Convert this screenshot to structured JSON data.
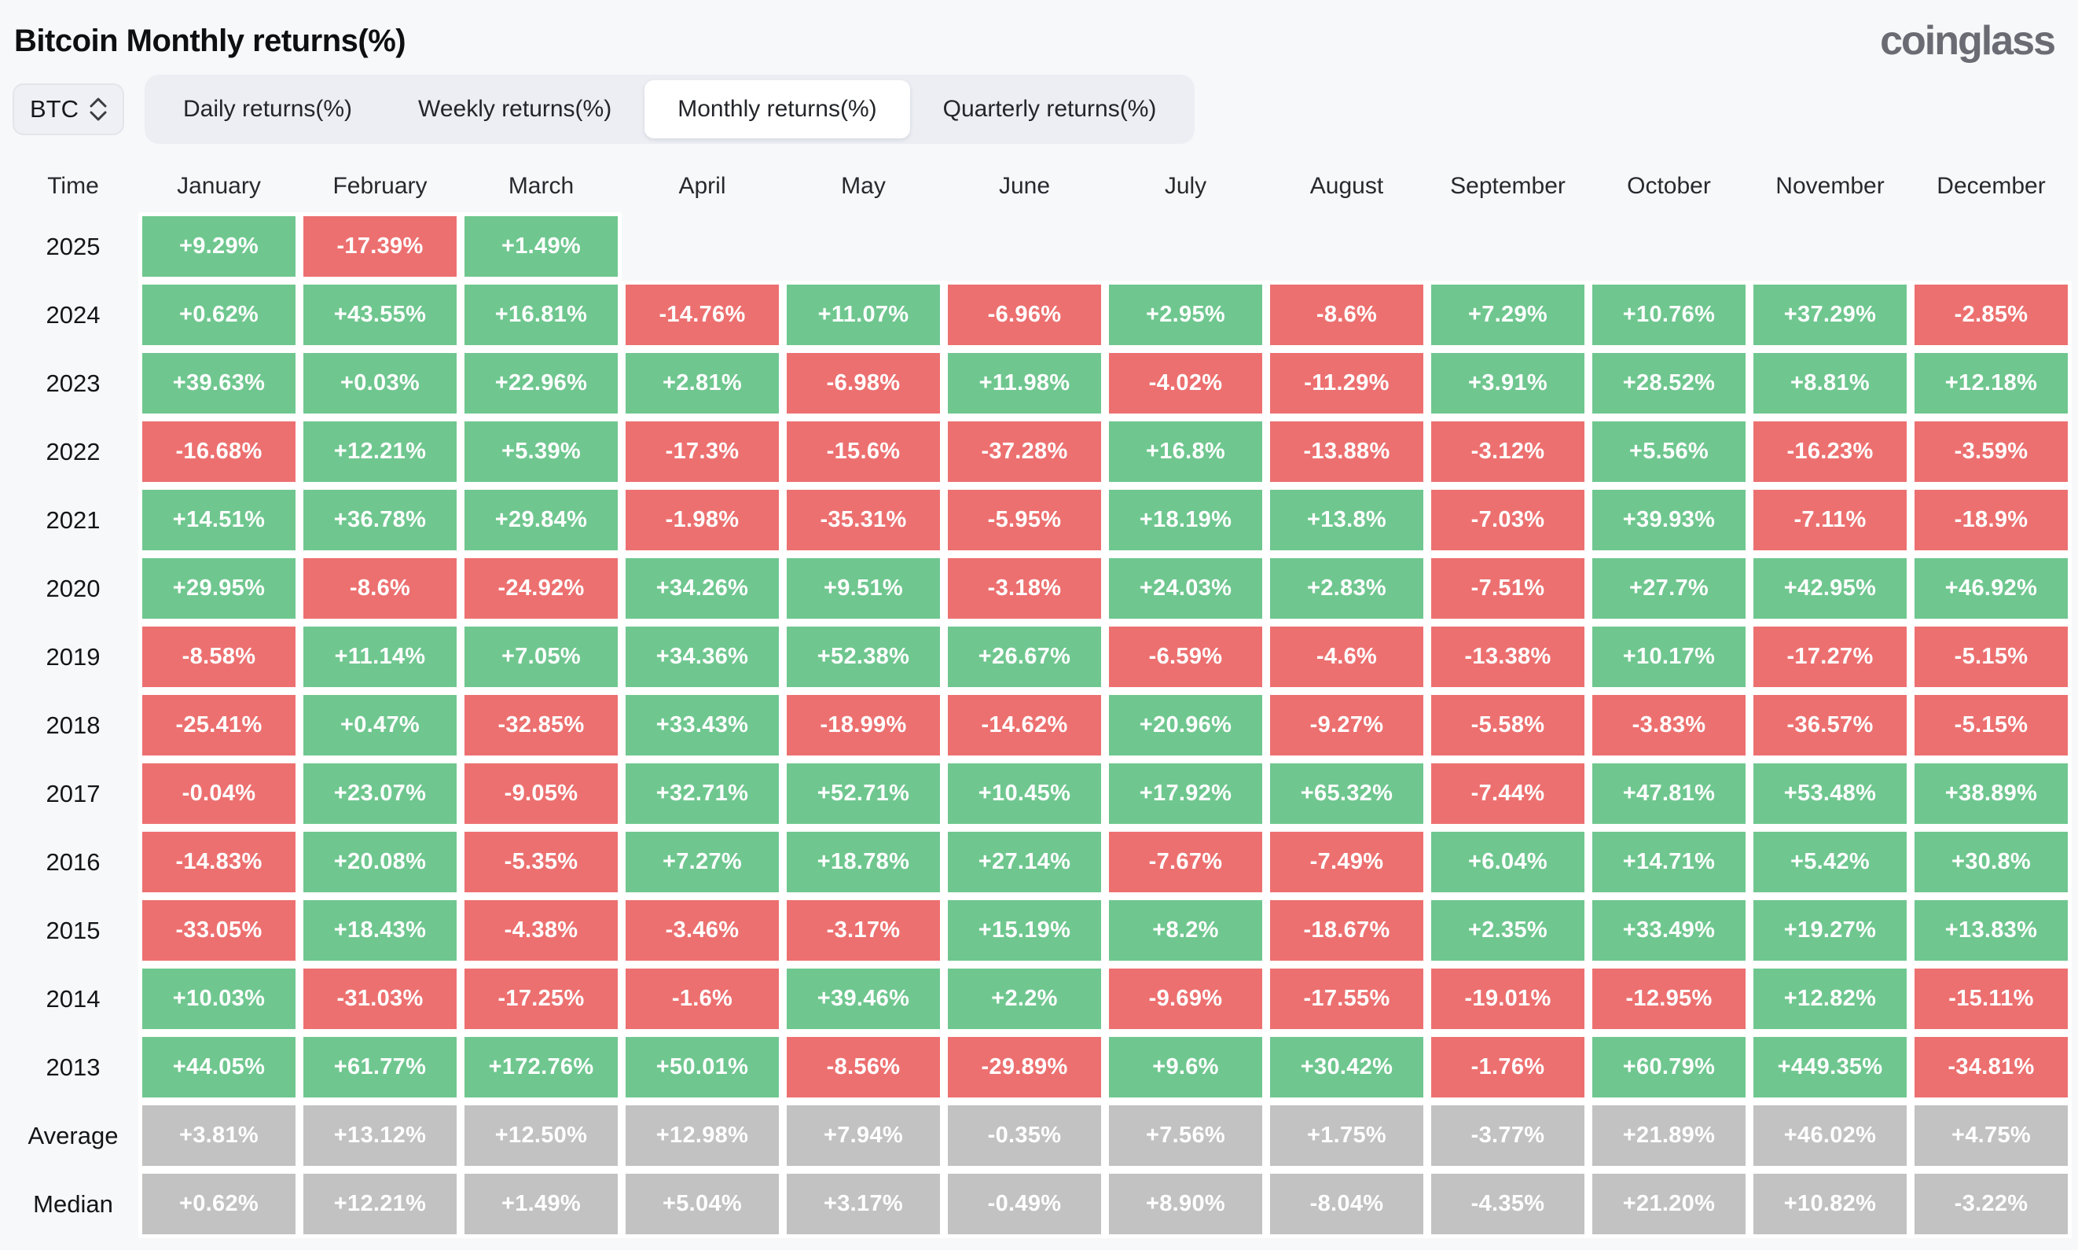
{
  "header": {
    "title": "Bitcoin Monthly returns(%)",
    "logo": "coinglass"
  },
  "controls": {
    "symbol": "BTC",
    "tabs": [
      {
        "label": "Daily returns(%)",
        "active": false
      },
      {
        "label": "Weekly returns(%)",
        "active": false
      },
      {
        "label": "Monthly returns(%)",
        "active": true
      },
      {
        "label": "Quarterly returns(%)",
        "active": false
      }
    ]
  },
  "colors": {
    "positive_bg": "#6FC78F",
    "negative_bg": "#ED7070",
    "neutral_bg": "#C2C2C2",
    "grid_line": "#FFFFFF",
    "page_bg": "#F7F8F9",
    "logo_gray": "#6B6B74"
  },
  "table": {
    "time_header": "Time",
    "months": [
      "January",
      "February",
      "March",
      "April",
      "May",
      "June",
      "July",
      "August",
      "September",
      "October",
      "November",
      "December"
    ],
    "rows": [
      {
        "label": "2025",
        "neutral": false,
        "values": [
          "+9.29%",
          "-17.39%",
          "+1.49%",
          "",
          "",
          "",
          "",
          "",
          "",
          "",
          "",
          ""
        ]
      },
      {
        "label": "2024",
        "neutral": false,
        "values": [
          "+0.62%",
          "+43.55%",
          "+16.81%",
          "-14.76%",
          "+11.07%",
          "-6.96%",
          "+2.95%",
          "-8.6%",
          "+7.29%",
          "+10.76%",
          "+37.29%",
          "-2.85%"
        ]
      },
      {
        "label": "2023",
        "neutral": false,
        "values": [
          "+39.63%",
          "+0.03%",
          "+22.96%",
          "+2.81%",
          "-6.98%",
          "+11.98%",
          "-4.02%",
          "-11.29%",
          "+3.91%",
          "+28.52%",
          "+8.81%",
          "+12.18%"
        ]
      },
      {
        "label": "2022",
        "neutral": false,
        "values": [
          "-16.68%",
          "+12.21%",
          "+5.39%",
          "-17.3%",
          "-15.6%",
          "-37.28%",
          "+16.8%",
          "-13.88%",
          "-3.12%",
          "+5.56%",
          "-16.23%",
          "-3.59%"
        ]
      },
      {
        "label": "2021",
        "neutral": false,
        "values": [
          "+14.51%",
          "+36.78%",
          "+29.84%",
          "-1.98%",
          "-35.31%",
          "-5.95%",
          "+18.19%",
          "+13.8%",
          "-7.03%",
          "+39.93%",
          "-7.11%",
          "-18.9%"
        ]
      },
      {
        "label": "2020",
        "neutral": false,
        "values": [
          "+29.95%",
          "-8.6%",
          "-24.92%",
          "+34.26%",
          "+9.51%",
          "-3.18%",
          "+24.03%",
          "+2.83%",
          "-7.51%",
          "+27.7%",
          "+42.95%",
          "+46.92%"
        ]
      },
      {
        "label": "2019",
        "neutral": false,
        "values": [
          "-8.58%",
          "+11.14%",
          "+7.05%",
          "+34.36%",
          "+52.38%",
          "+26.67%",
          "-6.59%",
          "-4.6%",
          "-13.38%",
          "+10.17%",
          "-17.27%",
          "-5.15%"
        ]
      },
      {
        "label": "2018",
        "neutral": false,
        "values": [
          "-25.41%",
          "+0.47%",
          "-32.85%",
          "+33.43%",
          "-18.99%",
          "-14.62%",
          "+20.96%",
          "-9.27%",
          "-5.58%",
          "-3.83%",
          "-36.57%",
          "-5.15%"
        ]
      },
      {
        "label": "2017",
        "neutral": false,
        "values": [
          "-0.04%",
          "+23.07%",
          "-9.05%",
          "+32.71%",
          "+52.71%",
          "+10.45%",
          "+17.92%",
          "+65.32%",
          "-7.44%",
          "+47.81%",
          "+53.48%",
          "+38.89%"
        ]
      },
      {
        "label": "2016",
        "neutral": false,
        "values": [
          "-14.83%",
          "+20.08%",
          "-5.35%",
          "+7.27%",
          "+18.78%",
          "+27.14%",
          "-7.67%",
          "-7.49%",
          "+6.04%",
          "+14.71%",
          "+5.42%",
          "+30.8%"
        ]
      },
      {
        "label": "2015",
        "neutral": false,
        "values": [
          "-33.05%",
          "+18.43%",
          "-4.38%",
          "-3.46%",
          "-3.17%",
          "+15.19%",
          "+8.2%",
          "-18.67%",
          "+2.35%",
          "+33.49%",
          "+19.27%",
          "+13.83%"
        ]
      },
      {
        "label": "2014",
        "neutral": false,
        "values": [
          "+10.03%",
          "-31.03%",
          "-17.25%",
          "-1.6%",
          "+39.46%",
          "+2.2%",
          "-9.69%",
          "-17.55%",
          "-19.01%",
          "-12.95%",
          "+12.82%",
          "-15.11%"
        ]
      },
      {
        "label": "2013",
        "neutral": false,
        "values": [
          "+44.05%",
          "+61.77%",
          "+172.76%",
          "+50.01%",
          "-8.56%",
          "-29.89%",
          "+9.6%",
          "+30.42%",
          "-1.76%",
          "+60.79%",
          "+449.35%",
          "-34.81%"
        ]
      },
      {
        "label": "Average",
        "neutral": true,
        "values": [
          "+3.81%",
          "+13.12%",
          "+12.50%",
          "+12.98%",
          "+7.94%",
          "-0.35%",
          "+7.56%",
          "+1.75%",
          "-3.77%",
          "+21.89%",
          "+46.02%",
          "+4.75%"
        ]
      },
      {
        "label": "Median",
        "neutral": true,
        "values": [
          "+0.62%",
          "+12.21%",
          "+1.49%",
          "+5.04%",
          "+3.17%",
          "-0.49%",
          "+8.90%",
          "-8.04%",
          "-4.35%",
          "+21.20%",
          "+10.82%",
          "-3.22%"
        ]
      }
    ]
  }
}
